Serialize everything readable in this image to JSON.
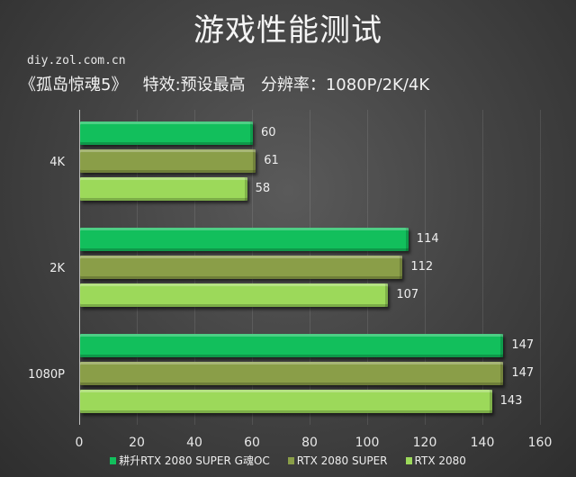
{
  "header": {
    "title": "游戏性能测试",
    "site": "diy.zol.com.cn",
    "subtitle": "《孤岛惊魂5》   特效:预设最高   分辨率：1080P/2K/4K"
  },
  "chart_data": {
    "type": "bar",
    "orientation": "horizontal",
    "title": "游戏性能测试",
    "subtitle": "《孤岛惊魂5》 特效:预设最高 分辨率：1080P/2K/4K",
    "categories": [
      "4K",
      "2K",
      "1080P"
    ],
    "series": [
      {
        "name": "耕升RTX 2080 SUPER G魂OC",
        "color": "#12bf5c",
        "values": [
          60,
          114,
          147
        ]
      },
      {
        "name": "RTX 2080 SUPER",
        "color": "#8a9e48",
        "values": [
          61,
          112,
          147
        ]
      },
      {
        "name": "RTX 2080",
        "color": "#9cd95a",
        "values": [
          58,
          107,
          143
        ]
      }
    ],
    "xlabel": "",
    "ylabel": "",
    "xlim": [
      0,
      160
    ],
    "xticks": [
      "0",
      "20",
      "40",
      "60",
      "80",
      "100",
      "120",
      "140",
      "160"
    ],
    "grid": true,
    "legend_position": "bottom"
  }
}
